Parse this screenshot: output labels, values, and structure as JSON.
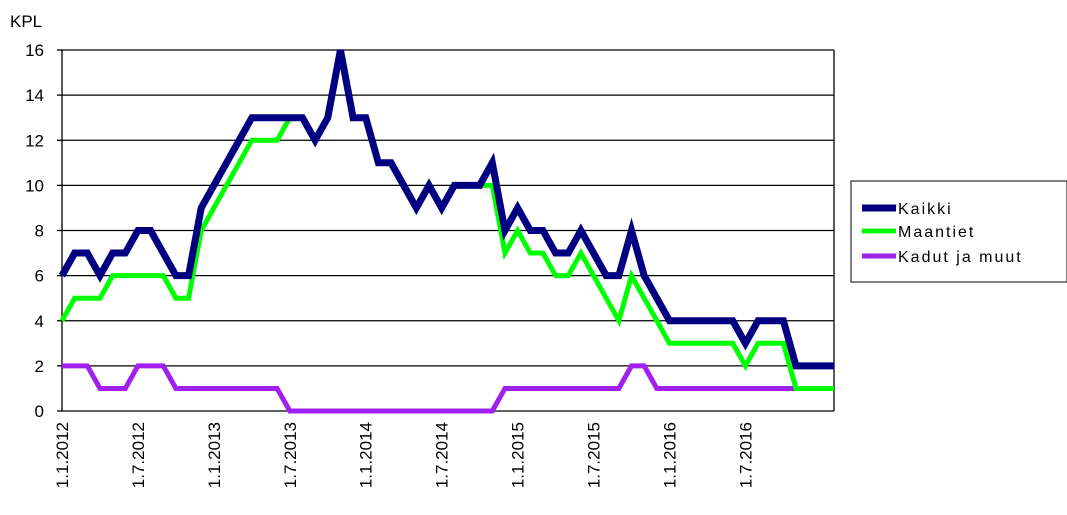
{
  "chart_data": {
    "type": "line",
    "ylabel": "KPL",
    "ylim": [
      0,
      16
    ],
    "yticks": [
      "0",
      "2",
      "4",
      "6",
      "8",
      "10",
      "12",
      "14",
      "16"
    ],
    "grid": true,
    "legend_position": "right",
    "x_tick_labels": [
      "1.1.2012",
      "1.7.2012",
      "1.1.2013",
      "1.7.2013",
      "1.1.2014",
      "1.7.2014",
      "1.1.2015",
      "1.7.2015",
      "1.1.2016",
      "1.7.2016"
    ],
    "x_start": "2012-01",
    "x_end": "2016-12",
    "series": [
      {
        "name": "Kaikki",
        "color": "#000080",
        "values": [
          6,
          7,
          7,
          6,
          7,
          7,
          8,
          8,
          7,
          6,
          6,
          9,
          10,
          11,
          12,
          13,
          13,
          13,
          13,
          13,
          12,
          13,
          16,
          13,
          13,
          11,
          11,
          10,
          9,
          10,
          9,
          10,
          10,
          10,
          11,
          8,
          9,
          8,
          8,
          7,
          7,
          8,
          7,
          6,
          6,
          8,
          6,
          5,
          4,
          4,
          4,
          4,
          4,
          4,
          3,
          4,
          4,
          4,
          2,
          2,
          2,
          2
        ]
      },
      {
        "name": "Maantiet",
        "color": "#00ff00",
        "values": [
          4,
          5,
          5,
          5,
          6,
          6,
          6,
          6,
          6,
          5,
          5,
          8,
          9,
          10,
          11,
          12,
          12,
          12,
          13,
          13,
          12,
          13,
          16,
          13,
          13,
          11,
          11,
          10,
          9,
          10,
          9,
          10,
          10,
          10,
          10,
          7,
          8,
          7,
          7,
          6,
          6,
          7,
          6,
          5,
          4,
          6,
          5,
          4,
          3,
          3,
          3,
          3,
          3,
          3,
          2,
          3,
          3,
          3,
          1,
          1,
          1,
          1
        ]
      },
      {
        "name": "Kadut ja muut",
        "color": "#a020f0",
        "values": [
          2,
          2,
          2,
          1,
          1,
          1,
          2,
          2,
          2,
          1,
          1,
          1,
          1,
          1,
          1,
          1,
          1,
          1,
          0,
          0,
          0,
          0,
          0,
          0,
          0,
          0,
          0,
          0,
          0,
          0,
          0,
          0,
          0,
          0,
          0,
          1,
          1,
          1,
          1,
          1,
          1,
          1,
          1,
          1,
          1,
          2,
          2,
          1,
          1,
          1,
          1,
          1,
          1,
          1,
          1,
          1,
          1,
          1,
          1,
          1,
          1,
          1
        ]
      }
    ]
  },
  "legend": {
    "items": [
      {
        "label": "Kaikki",
        "color": "#000080"
      },
      {
        "label": "Maantiet",
        "color": "#00ff00"
      },
      {
        "label": "Kadut ja muut",
        "color": "#a020f0"
      }
    ]
  }
}
